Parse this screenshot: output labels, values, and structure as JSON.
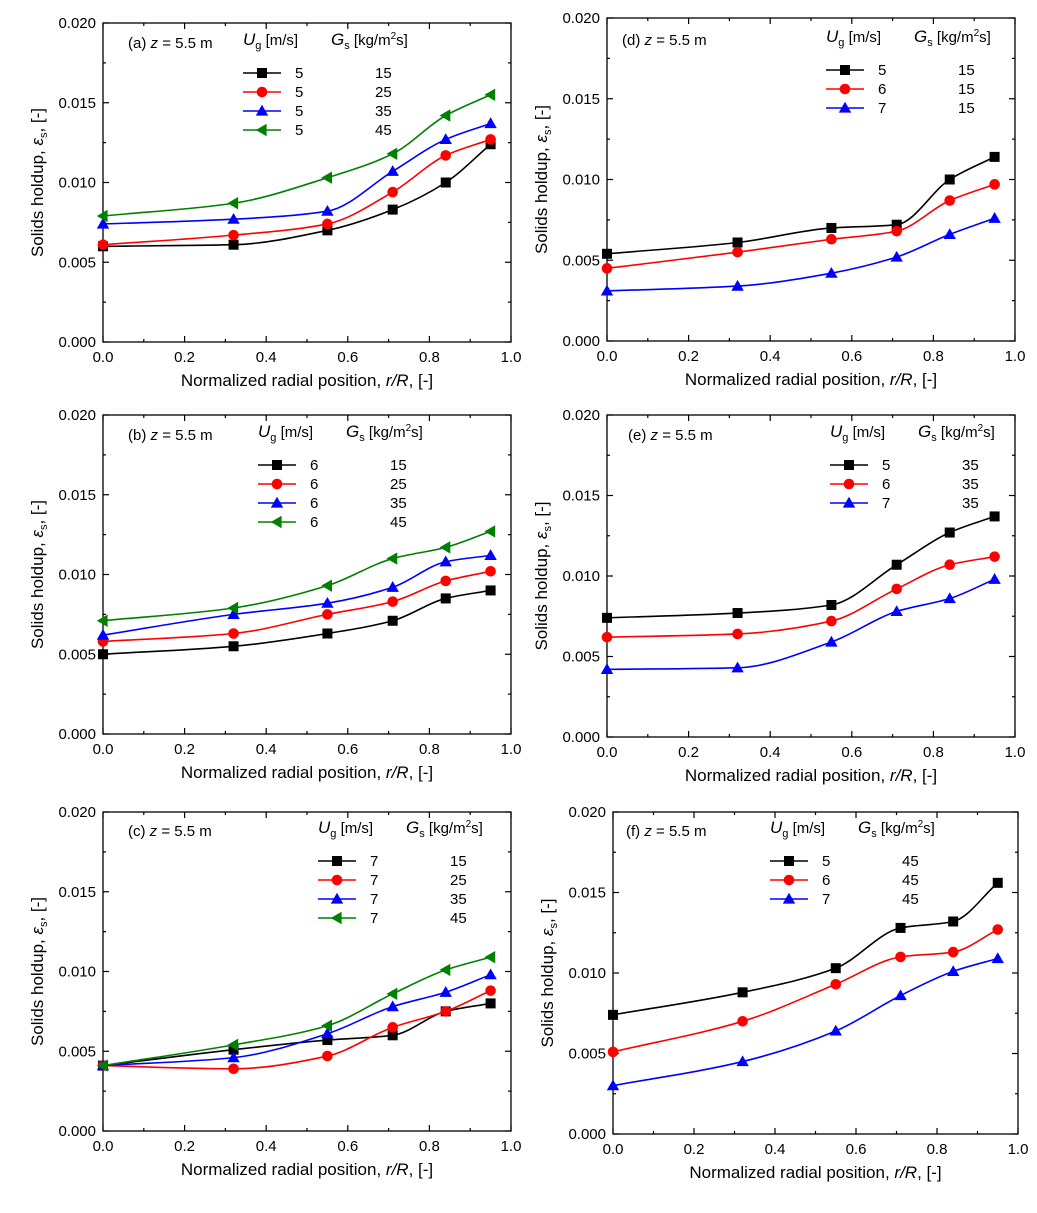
{
  "chart_data": [
    {
      "type": "line",
      "panel_label": "(a)",
      "condition_var": "z",
      "condition_val": "= 5.5 m",
      "legend_header_ug": "[m/s]",
      "legend_header_gs": "[kg/m",
      "legend_header_gs_tail": "s]",
      "xlabel": "Normalized radial position, ",
      "xlabel_var": "r/R",
      "xlabel_tail": ", [-]",
      "ylabel": "Solids holdup, ",
      "ylabel_tail": ", [-]",
      "xlim": [
        0,
        1.0
      ],
      "ylim": [
        0,
        0.02
      ],
      "x_ticks": [
        "0.0",
        "0.2",
        "0.4",
        "0.6",
        "0.8",
        "1.0"
      ],
      "y_ticks": [
        "0.000",
        "0.005",
        "0.010",
        "0.015",
        "0.020"
      ],
      "x": [
        0,
        0.32,
        0.55,
        0.71,
        0.84,
        0.95
      ],
      "series": [
        {
          "ug": "5",
          "gs": "15",
          "color": "#000000",
          "marker": "square",
          "values": [
            0.006,
            0.0061,
            0.007,
            0.0083,
            0.01,
            0.0124
          ]
        },
        {
          "ug": "5",
          "gs": "25",
          "color": "#ff0000",
          "marker": "circle",
          "values": [
            0.0061,
            0.0067,
            0.0074,
            0.0094,
            0.0117,
            0.0127
          ]
        },
        {
          "ug": "5",
          "gs": "35",
          "color": "#0000ff",
          "marker": "triangle-up",
          "values": [
            0.0074,
            0.0077,
            0.0082,
            0.0107,
            0.0127,
            0.0137
          ]
        },
        {
          "ug": "5",
          "gs": "45",
          "color": "#008000",
          "marker": "triangle-left",
          "values": [
            0.0079,
            0.0087,
            0.0103,
            0.0118,
            0.0142,
            0.0155
          ]
        }
      ]
    },
    {
      "type": "line",
      "panel_label": "(b)",
      "condition_var": "z",
      "condition_val": "= 5.5 m",
      "legend_header_ug": "[m/s]",
      "legend_header_gs": "[kg/m",
      "legend_header_gs_tail": "s]",
      "xlabel": "Normalized radial position, ",
      "xlabel_var": "r/R",
      "xlabel_tail": ", [-]",
      "ylabel": "Solids holdup, ",
      "ylabel_tail": ", [-]",
      "xlim": [
        0,
        1.0
      ],
      "ylim": [
        0,
        0.02
      ],
      "x_ticks": [
        "0.0",
        "0.2",
        "0.4",
        "0.6",
        "0.8",
        "1.0"
      ],
      "y_ticks": [
        "0.000",
        "0.005",
        "0.010",
        "0.015",
        "0.020"
      ],
      "x": [
        0,
        0.32,
        0.55,
        0.71,
        0.84,
        0.95
      ],
      "series": [
        {
          "ug": "6",
          "gs": "15",
          "color": "#000000",
          "marker": "square",
          "values": [
            0.005,
            0.0055,
            0.0063,
            0.0071,
            0.0085,
            0.009
          ]
        },
        {
          "ug": "6",
          "gs": "25",
          "color": "#ff0000",
          "marker": "circle",
          "values": [
            0.0058,
            0.0063,
            0.0075,
            0.0083,
            0.0096,
            0.0102
          ]
        },
        {
          "ug": "6",
          "gs": "35",
          "color": "#0000ff",
          "marker": "triangle-up",
          "values": [
            0.0062,
            0.0075,
            0.0082,
            0.0092,
            0.0108,
            0.0112
          ]
        },
        {
          "ug": "6",
          "gs": "45",
          "color": "#008000",
          "marker": "triangle-left",
          "values": [
            0.0071,
            0.0079,
            0.0093,
            0.011,
            0.0117,
            0.0127
          ]
        }
      ]
    },
    {
      "type": "line",
      "panel_label": "(c)",
      "condition_var": "z",
      "condition_val": "= 5.5 m",
      "legend_header_ug": "[m/s]",
      "legend_header_gs": "[kg/m",
      "legend_header_gs_tail": "s]",
      "xlabel": "Normalized radial position, ",
      "xlabel_var": "r/R",
      "xlabel_tail": ", [-]",
      "ylabel": "Solids holdup, ",
      "ylabel_tail": ", [-]",
      "xlim": [
        0,
        1.0
      ],
      "ylim": [
        0,
        0.02
      ],
      "x_ticks": [
        "0.0",
        "0.2",
        "0.4",
        "0.6",
        "0.8",
        "1.0"
      ],
      "y_ticks": [
        "0.000",
        "0.005",
        "0.010",
        "0.015",
        "0.020"
      ],
      "x": [
        0,
        0.32,
        0.55,
        0.71,
        0.84,
        0.95
      ],
      "series": [
        {
          "ug": "7",
          "gs": "15",
          "color": "#000000",
          "marker": "square",
          "values": [
            0.0041,
            0.0051,
            0.0057,
            0.006,
            0.0075,
            0.008
          ]
        },
        {
          "ug": "7",
          "gs": "25",
          "color": "#ff0000",
          "marker": "circle",
          "values": [
            0.0041,
            0.0039,
            0.0047,
            0.0065,
            0.0075,
            0.0088
          ]
        },
        {
          "ug": "7",
          "gs": "35",
          "color": "#0000ff",
          "marker": "triangle-up",
          "values": [
            0.0041,
            0.0046,
            0.0061,
            0.0078,
            0.0087,
            0.0098
          ]
        },
        {
          "ug": "7",
          "gs": "45",
          "color": "#008000",
          "marker": "triangle-left",
          "values": [
            0.0041,
            0.0054,
            0.0066,
            0.0086,
            0.0101,
            0.0109
          ]
        }
      ]
    },
    {
      "type": "line",
      "panel_label": "(d)",
      "condition_var": "z",
      "condition_val": "= 5.5 m",
      "legend_header_ug": "[m/s]",
      "legend_header_gs": "[kg/m",
      "legend_header_gs_tail": "s]",
      "xlabel": "Normalized radial position, ",
      "xlabel_var": "r/R",
      "xlabel_tail": ", [-]",
      "ylabel": "Solids holdup, ",
      "ylabel_tail": ", [-]",
      "xlim": [
        0,
        1.0
      ],
      "ylim": [
        0,
        0.02
      ],
      "x_ticks": [
        "0.0",
        "0.2",
        "0.4",
        "0.6",
        "0.8",
        "1.0"
      ],
      "y_ticks": [
        "0.000",
        "0.005",
        "0.010",
        "0.015",
        "0.020"
      ],
      "x": [
        0,
        0.32,
        0.55,
        0.71,
        0.84,
        0.95
      ],
      "series": [
        {
          "ug": "5",
          "gs": "15",
          "color": "#000000",
          "marker": "square",
          "values": [
            0.0054,
            0.0061,
            0.007,
            0.0072,
            0.01,
            0.0114
          ]
        },
        {
          "ug": "6",
          "gs": "15",
          "color": "#ff0000",
          "marker": "circle",
          "values": [
            0.0045,
            0.0055,
            0.0063,
            0.0068,
            0.0087,
            0.0097
          ]
        },
        {
          "ug": "7",
          "gs": "15",
          "color": "#0000ff",
          "marker": "triangle-up",
          "values": [
            0.0031,
            0.0034,
            0.0042,
            0.0052,
            0.0066,
            0.0076
          ]
        }
      ]
    },
    {
      "type": "line",
      "panel_label": "(e)",
      "condition_var": "z",
      "condition_val": "= 5.5 m",
      "legend_header_ug": "[m/s]",
      "legend_header_gs": "[kg/m",
      "legend_header_gs_tail": "s]",
      "xlabel": "Normalized radial position, ",
      "xlabel_var": "r/R",
      "xlabel_tail": ", [-]",
      "ylabel": "Solids holdup, ",
      "ylabel_tail": ", [-]",
      "xlim": [
        0,
        1.0
      ],
      "ylim": [
        0,
        0.02
      ],
      "x_ticks": [
        "0.0",
        "0.2",
        "0.4",
        "0.6",
        "0.8",
        "1.0"
      ],
      "y_ticks": [
        "0.000",
        "0.005",
        "0.010",
        "0.015",
        "0.020"
      ],
      "x": [
        0,
        0.32,
        0.55,
        0.71,
        0.84,
        0.95
      ],
      "series": [
        {
          "ug": "5",
          "gs": "35",
          "color": "#000000",
          "marker": "square",
          "values": [
            0.0074,
            0.0077,
            0.0082,
            0.0107,
            0.0127,
            0.0137
          ]
        },
        {
          "ug": "6",
          "gs": "35",
          "color": "#ff0000",
          "marker": "circle",
          "values": [
            0.0062,
            0.0064,
            0.0072,
            0.0092,
            0.0107,
            0.0112
          ]
        },
        {
          "ug": "7",
          "gs": "35",
          "color": "#0000ff",
          "marker": "triangle-up",
          "values": [
            0.0042,
            0.0043,
            0.0059,
            0.0078,
            0.0086,
            0.0098
          ]
        }
      ]
    },
    {
      "type": "line",
      "panel_label": "(f)",
      "condition_var": "z",
      "condition_val": "= 5.5 m",
      "legend_header_ug": "[m/s]",
      "legend_header_gs": "[kg/m",
      "legend_header_gs_tail": "s]",
      "xlabel": "Normalized radial position, ",
      "xlabel_var": "r/R",
      "xlabel_tail": ", [-]",
      "ylabel": "Solids holdup, ",
      "ylabel_tail": ", [-]",
      "xlim": [
        0,
        1.0
      ],
      "ylim": [
        0,
        0.02
      ],
      "x_ticks": [
        "0.0",
        "0.2",
        "0.4",
        "0.6",
        "0.8",
        "1.0"
      ],
      "y_ticks": [
        "0.000",
        "0.005",
        "0.010",
        "0.015",
        "0.020"
      ],
      "x": [
        0,
        0.32,
        0.55,
        0.71,
        0.84,
        0.95
      ],
      "series": [
        {
          "ug": "5",
          "gs": "45",
          "color": "#000000",
          "marker": "square",
          "values": [
            0.0074,
            0.0088,
            0.0103,
            0.0128,
            0.0132,
            0.0156
          ]
        },
        {
          "ug": "6",
          "gs": "45",
          "color": "#ff0000",
          "marker": "circle",
          "values": [
            0.0051,
            0.007,
            0.0093,
            0.011,
            0.0113,
            0.0127
          ]
        },
        {
          "ug": "7",
          "gs": "45",
          "color": "#0000ff",
          "marker": "triangle-up",
          "values": [
            0.003,
            0.0045,
            0.0064,
            0.0086,
            0.0101,
            0.0109
          ]
        }
      ]
    }
  ]
}
